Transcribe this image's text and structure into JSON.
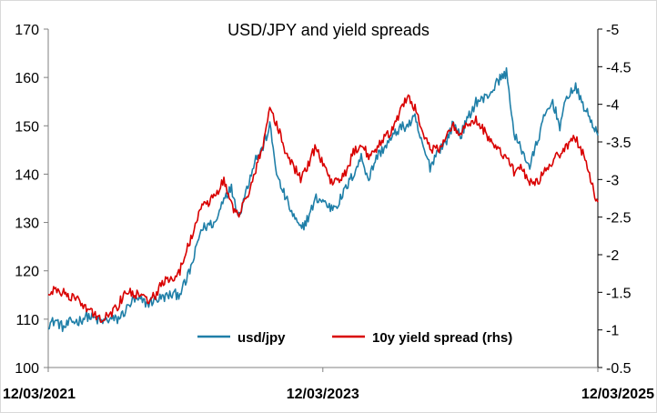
{
  "chart_data": {
    "type": "line",
    "title": "USD/JPY and yield spreads",
    "x_tick_labels": [
      "12/03/2021",
      "12/03/2023",
      "12/03/2025"
    ],
    "x_range": [
      "2021-03-12",
      "2025-03-12"
    ],
    "y_left": {
      "range": [
        100,
        170
      ],
      "ticks": [
        100,
        110,
        120,
        130,
        140,
        150,
        160,
        170
      ]
    },
    "y_right": {
      "range": [
        -0.5,
        -5
      ],
      "ticks": [
        -0.5,
        -1,
        -1.5,
        -2,
        -2.5,
        -3,
        -3.5,
        -4,
        -4.5,
        -5
      ],
      "inverted": true
    },
    "grid": false,
    "legend_position": "bottom-center",
    "series": [
      {
        "name": "usd/jpy",
        "axis": "left",
        "color": "#1F7FA8",
        "points": [
          [
            "2021-03-12",
            109.0
          ],
          [
            "2021-04-01",
            109.7
          ],
          [
            "2021-04-22",
            108.2
          ],
          [
            "2021-05-12",
            109.5
          ],
          [
            "2021-06-01",
            109.6
          ],
          [
            "2021-06-22",
            110.7
          ],
          [
            "2021-07-12",
            110.1
          ],
          [
            "2021-08-01",
            109.4
          ],
          [
            "2021-08-22",
            110.0
          ],
          [
            "2021-09-12",
            109.9
          ],
          [
            "2021-10-01",
            111.5
          ],
          [
            "2021-10-22",
            113.8
          ],
          [
            "2021-11-12",
            113.9
          ],
          [
            "2021-12-01",
            113.2
          ],
          [
            "2021-12-22",
            114.1
          ],
          [
            "2022-01-12",
            114.5
          ],
          [
            "2022-02-01",
            115.0
          ],
          [
            "2022-02-22",
            115.2
          ],
          [
            "2022-03-12",
            117.5
          ],
          [
            "2022-04-01",
            122.0
          ],
          [
            "2022-04-22",
            128.5
          ],
          [
            "2022-05-12",
            129.5
          ],
          [
            "2022-06-01",
            130.0
          ],
          [
            "2022-06-22",
            135.5
          ],
          [
            "2022-07-12",
            137.0
          ],
          [
            "2022-08-01",
            131.5
          ],
          [
            "2022-08-22",
            137.0
          ],
          [
            "2022-09-12",
            143.0
          ],
          [
            "2022-10-01",
            145.0
          ],
          [
            "2022-10-22",
            150.0
          ],
          [
            "2022-11-12",
            139.0
          ],
          [
            "2022-12-01",
            135.5
          ],
          [
            "2022-12-22",
            131.5
          ],
          [
            "2023-01-12",
            128.5
          ],
          [
            "2023-02-01",
            131.0
          ],
          [
            "2023-02-22",
            135.0
          ],
          [
            "2023-03-12",
            134.5
          ],
          [
            "2023-04-01",
            133.0
          ],
          [
            "2023-04-22",
            134.0
          ],
          [
            "2023-05-12",
            137.0
          ],
          [
            "2023-06-01",
            140.0
          ],
          [
            "2023-06-22",
            143.5
          ],
          [
            "2023-07-12",
            139.0
          ],
          [
            "2023-08-01",
            143.5
          ],
          [
            "2023-08-22",
            145.5
          ],
          [
            "2023-09-12",
            147.5
          ],
          [
            "2023-10-01",
            149.5
          ],
          [
            "2023-10-22",
            150.0
          ],
          [
            "2023-11-12",
            151.5
          ],
          [
            "2023-12-01",
            146.0
          ],
          [
            "2023-12-22",
            141.5
          ],
          [
            "2024-01-12",
            145.0
          ],
          [
            "2024-02-01",
            146.5
          ],
          [
            "2024-02-22",
            150.5
          ],
          [
            "2024-03-12",
            148.0
          ],
          [
            "2024-04-01",
            151.5
          ],
          [
            "2024-04-22",
            155.0
          ],
          [
            "2024-05-12",
            155.5
          ],
          [
            "2024-06-01",
            157.0
          ],
          [
            "2024-06-22",
            159.5
          ],
          [
            "2024-07-12",
            161.0
          ],
          [
            "2024-07-22",
            155.5
          ],
          [
            "2024-08-01",
            148.0
          ],
          [
            "2024-08-22",
            145.0
          ],
          [
            "2024-09-12",
            141.5
          ],
          [
            "2024-10-01",
            146.5
          ],
          [
            "2024-10-22",
            152.0
          ],
          [
            "2024-11-12",
            155.0
          ],
          [
            "2024-12-01",
            150.0
          ],
          [
            "2024-12-22",
            156.5
          ],
          [
            "2025-01-12",
            157.8
          ],
          [
            "2025-01-22",
            156.0
          ],
          [
            "2025-02-12",
            152.5
          ],
          [
            "2025-03-01",
            150.0
          ],
          [
            "2025-03-12",
            148.0
          ]
        ]
      },
      {
        "name": "10y yield spread (rhs)",
        "axis": "right",
        "color": "#D90000",
        "points": [
          [
            "2021-03-12",
            -1.45
          ],
          [
            "2021-04-01",
            -1.55
          ],
          [
            "2021-04-22",
            -1.5
          ],
          [
            "2021-05-12",
            -1.45
          ],
          [
            "2021-06-01",
            -1.4
          ],
          [
            "2021-06-22",
            -1.3
          ],
          [
            "2021-07-12",
            -1.2
          ],
          [
            "2021-08-01",
            -1.15
          ],
          [
            "2021-08-22",
            -1.2
          ],
          [
            "2021-09-12",
            -1.3
          ],
          [
            "2021-10-01",
            -1.5
          ],
          [
            "2021-10-22",
            -1.5
          ],
          [
            "2021-11-12",
            -1.45
          ],
          [
            "2021-12-01",
            -1.4
          ],
          [
            "2021-12-22",
            -1.45
          ],
          [
            "2022-01-12",
            -1.65
          ],
          [
            "2022-02-01",
            -1.7
          ],
          [
            "2022-02-22",
            -1.75
          ],
          [
            "2022-03-12",
            -2.0
          ],
          [
            "2022-04-01",
            -2.3
          ],
          [
            "2022-04-22",
            -2.6
          ],
          [
            "2022-05-12",
            -2.7
          ],
          [
            "2022-06-01",
            -2.8
          ],
          [
            "2022-06-22",
            -3.0
          ],
          [
            "2022-07-12",
            -2.65
          ],
          [
            "2022-08-01",
            -2.55
          ],
          [
            "2022-08-22",
            -2.75
          ],
          [
            "2022-09-12",
            -3.1
          ],
          [
            "2022-10-01",
            -3.4
          ],
          [
            "2022-10-22",
            -3.95
          ],
          [
            "2022-11-12",
            -3.7
          ],
          [
            "2022-12-01",
            -3.4
          ],
          [
            "2022-12-22",
            -3.2
          ],
          [
            "2023-01-12",
            -3.0
          ],
          [
            "2023-02-01",
            -3.2
          ],
          [
            "2023-02-22",
            -3.45
          ],
          [
            "2023-03-12",
            -3.2
          ],
          [
            "2023-04-01",
            -3.0
          ],
          [
            "2023-04-22",
            -2.95
          ],
          [
            "2023-05-12",
            -3.1
          ],
          [
            "2023-06-01",
            -3.35
          ],
          [
            "2023-06-22",
            -3.5
          ],
          [
            "2023-07-12",
            -3.3
          ],
          [
            "2023-08-01",
            -3.4
          ],
          [
            "2023-08-22",
            -3.55
          ],
          [
            "2023-09-12",
            -3.65
          ],
          [
            "2023-10-01",
            -3.85
          ],
          [
            "2023-10-22",
            -4.1
          ],
          [
            "2023-11-12",
            -3.95
          ],
          [
            "2023-12-01",
            -3.6
          ],
          [
            "2023-12-22",
            -3.4
          ],
          [
            "2024-01-12",
            -3.4
          ],
          [
            "2024-02-01",
            -3.55
          ],
          [
            "2024-02-22",
            -3.7
          ],
          [
            "2024-03-12",
            -3.6
          ],
          [
            "2024-04-01",
            -3.75
          ],
          [
            "2024-04-22",
            -3.8
          ],
          [
            "2024-05-12",
            -3.65
          ],
          [
            "2024-06-01",
            -3.5
          ],
          [
            "2024-06-22",
            -3.4
          ],
          [
            "2024-07-12",
            -3.3
          ],
          [
            "2024-08-01",
            -3.1
          ],
          [
            "2024-08-22",
            -3.15
          ],
          [
            "2024-09-12",
            -2.95
          ],
          [
            "2024-10-01",
            -2.95
          ],
          [
            "2024-10-22",
            -3.1
          ],
          [
            "2024-11-12",
            -3.25
          ],
          [
            "2024-12-01",
            -3.35
          ],
          [
            "2024-12-22",
            -3.45
          ],
          [
            "2025-01-12",
            -3.55
          ],
          [
            "2025-01-22",
            -3.45
          ],
          [
            "2025-02-12",
            -3.2
          ],
          [
            "2025-03-01",
            -2.85
          ],
          [
            "2025-03-12",
            -2.7
          ]
        ]
      }
    ]
  }
}
